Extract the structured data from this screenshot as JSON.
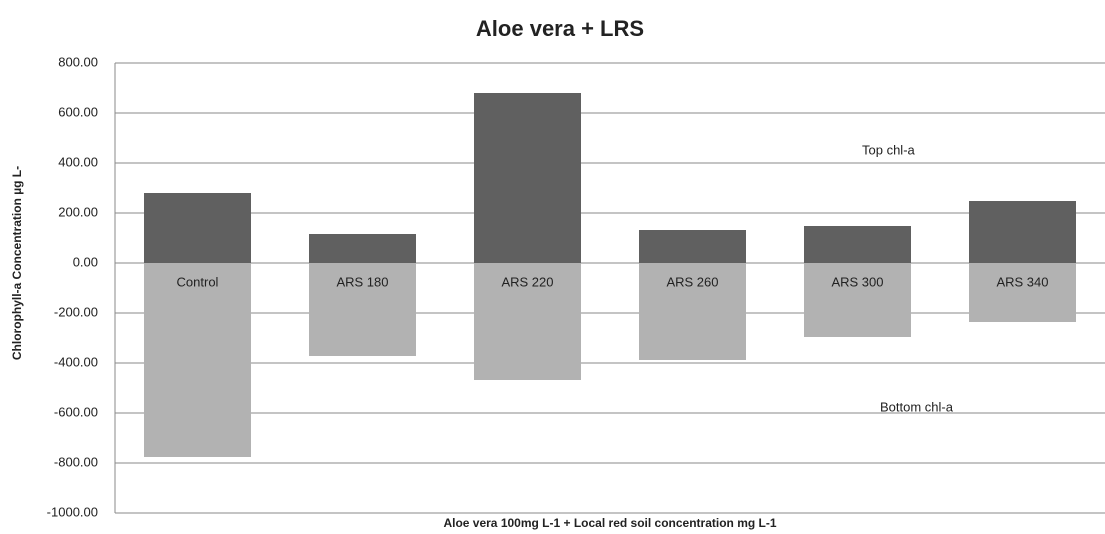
{
  "chart_data": {
    "type": "bar",
    "title": "Aloe vera + LRS",
    "x_label": "Aloe vera 100mg L-1  + Local red soil concentration mg L-1",
    "y_label": "Chlorophyll-a Concentration µg L-",
    "categories": [
      "Control",
      "ARS 180",
      "ARS 220",
      "ARS 260",
      "ARS 300",
      "ARS 340"
    ],
    "series": [
      {
        "name": "Top chl-a",
        "color": "#606060",
        "values": [
          280,
          116,
          680,
          132,
          148,
          248
        ]
      },
      {
        "name": "Bottom chl-a",
        "color": "#b2b2b2",
        "values": [
          -776,
          -372,
          -468,
          -388,
          -296,
          -236
        ]
      }
    ],
    "ylim": [
      -1000,
      800
    ],
    "yticks": [
      {
        "value": -1000,
        "label": "-1000.00"
      },
      {
        "value": -800,
        "label": "-800.00"
      },
      {
        "value": -600,
        "label": "-600.00"
      },
      {
        "value": -400,
        "label": "-400.00"
      },
      {
        "value": -200,
        "label": "-200.00"
      },
      {
        "value": 0,
        "label": "0.00"
      },
      {
        "value": 200,
        "label": "200.00"
      },
      {
        "value": 400,
        "label": "400.00"
      },
      {
        "value": 600,
        "label": "600.00"
      },
      {
        "value": 800,
        "label": "800.00"
      }
    ],
    "grid": true
  }
}
